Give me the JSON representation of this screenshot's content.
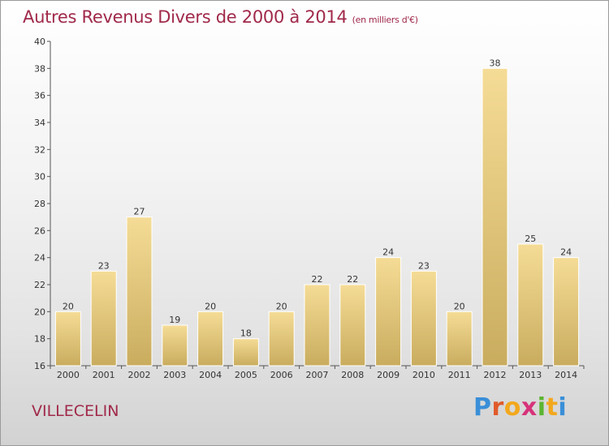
{
  "header": {
    "title": "Autres Revenus Divers de 2000 à 2014",
    "subtitle": "(en milliers d'€)"
  },
  "footer": {
    "commune": "VILLECELIN",
    "logo_letters": [
      "P",
      "r",
      "o",
      "x",
      "i",
      "t",
      "i"
    ],
    "logo_colors": [
      "#3a8fd8",
      "#e05a2b",
      "#f2a81d",
      "#d6337a",
      "#5cb531",
      "#f2a81d",
      "#3a8fd8"
    ]
  },
  "chart_data": {
    "type": "bar",
    "title": "Autres Revenus Divers de 2000 à 2014",
    "subtitle": "(en milliers d'€)",
    "categories": [
      "2000",
      "2001",
      "2002",
      "2003",
      "2004",
      "2005",
      "2006",
      "2007",
      "2008",
      "2009",
      "2010",
      "2011",
      "2012",
      "2013",
      "2014"
    ],
    "values": [
      20,
      23,
      27,
      19,
      20,
      18,
      20,
      22,
      22,
      24,
      23,
      20,
      38,
      25,
      24
    ],
    "ylim": [
      16,
      40
    ],
    "yticks": [
      16,
      18,
      20,
      22,
      24,
      26,
      28,
      30,
      32,
      34,
      36,
      38,
      40
    ],
    "grid": false,
    "bar_color_top": "#f5dc96",
    "bar_color_bottom": "#c9ac5e"
  }
}
